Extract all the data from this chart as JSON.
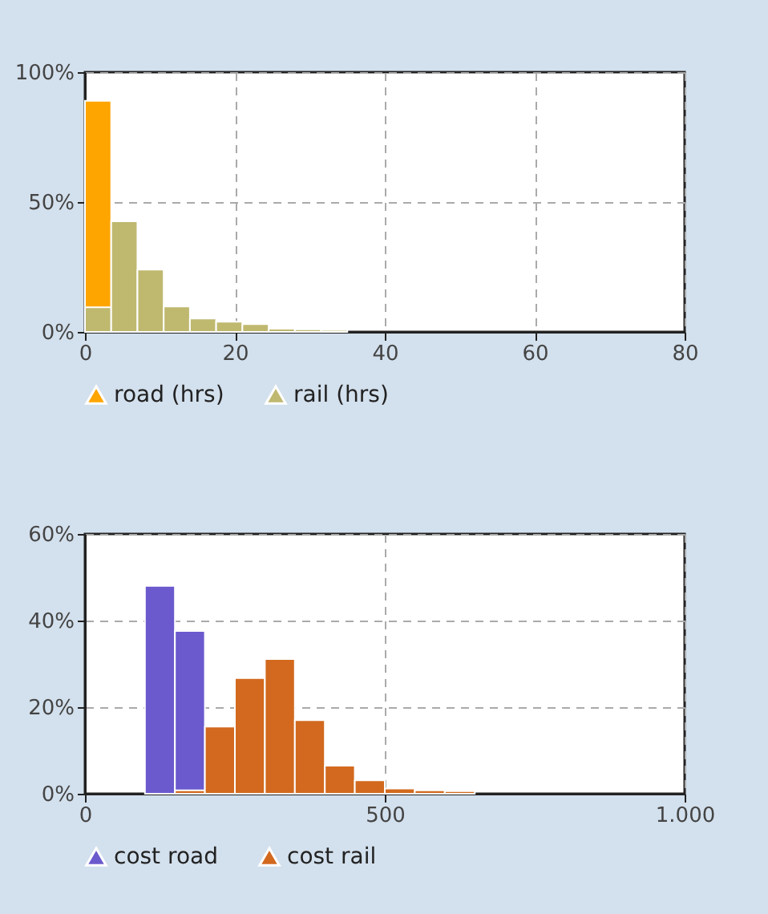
{
  "chart_data": [
    {
      "type": "histogram",
      "bins": [
        0,
        3.5,
        7,
        10.5,
        14,
        17.5,
        21,
        24.5,
        28,
        31.5,
        35
      ],
      "series": [
        {
          "name": "road (hrs)",
          "color": "#ffa500",
          "values": [
            89,
            null,
            null,
            null,
            null,
            null,
            null,
            null,
            null,
            null
          ]
        },
        {
          "name": "rail (hrs)",
          "color": "#bfb86f",
          "values": [
            9.5,
            42.6,
            24,
            9.8,
            5.2,
            3.9,
            3,
            1.2,
            1,
            0.8
          ]
        }
      ],
      "xlim": [
        0,
        80
      ],
      "xticks": [
        0,
        20,
        40,
        60,
        80
      ],
      "ylim": [
        0,
        100
      ],
      "yticks": [
        {
          "value": 0,
          "label": "0%"
        },
        {
          "value": 50,
          "label": "50%"
        },
        {
          "value": 100,
          "label": "100%"
        }
      ],
      "grid": true,
      "legend": "bottom"
    },
    {
      "type": "histogram",
      "bins": [
        100,
        150,
        200,
        250,
        300,
        350,
        400,
        450,
        500,
        550,
        600,
        650
      ],
      "series": [
        {
          "name": "cost road",
          "color": "#6a5acd",
          "values": [
            48,
            37.6,
            null,
            null,
            null,
            null,
            null,
            null,
            null,
            null,
            null
          ]
        },
        {
          "name": "cost rail",
          "color": "#d2691e",
          "values": [
            null,
            0.8,
            15.5,
            26.7,
            31.1,
            17,
            6.5,
            3.1,
            1.2,
            0.8,
            0.6
          ]
        }
      ],
      "xlim": [
        0,
        1000
      ],
      "xticks": [
        0,
        500,
        {
          "value": 1000,
          "label": "1.000"
        }
      ],
      "ylim": [
        0,
        60
      ],
      "yticks": [
        {
          "value": 0,
          "label": "0%"
        },
        {
          "value": 20,
          "label": "20%"
        },
        {
          "value": 40,
          "label": "40%"
        },
        {
          "value": 60,
          "label": "60%"
        }
      ],
      "grid": true,
      "legend": "bottom"
    }
  ]
}
